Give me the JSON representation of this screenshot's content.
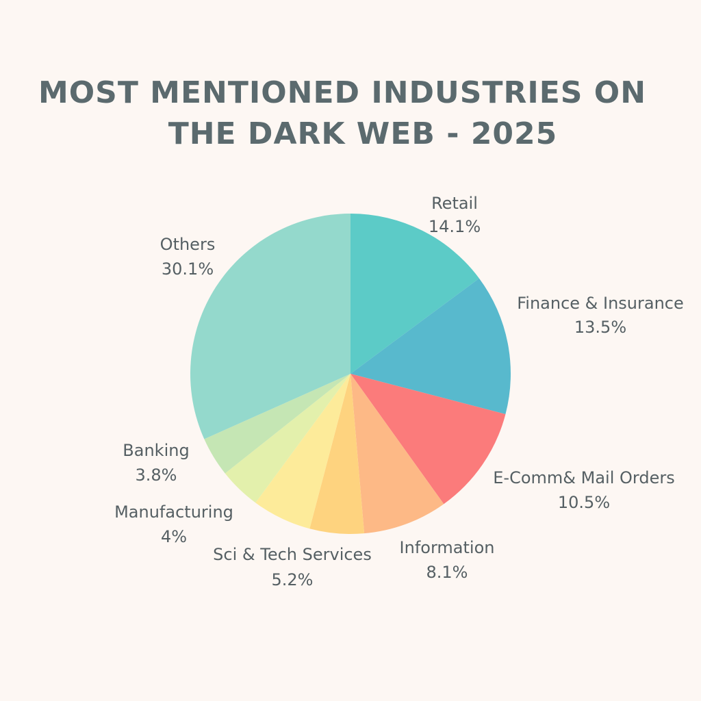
{
  "title": {
    "line1": "MOST MENTIONED INDUSTRIES ON",
    "line2": "THE DARK WEB - 2025"
  },
  "chart_data": {
    "type": "pie",
    "title": "MOST MENTIONED INDUSTRIES ON THE DARK WEB - 2025",
    "start_angle_deg": 0,
    "direction": "clockwise",
    "slices": [
      {
        "label": "Retail",
        "value": 14.1,
        "display": "14.1%",
        "color": "#5ccbc7"
      },
      {
        "label": "Finance & Insurance",
        "value": 13.5,
        "display": "13.5%",
        "color": "#58b9cd"
      },
      {
        "label": "E-Comm& Mail Orders",
        "value": 10.5,
        "display": "10.5%",
        "color": "#fb7b7b"
      },
      {
        "label": "Information",
        "value": 8.1,
        "display": "8.1%",
        "color": "#fdb986"
      },
      {
        "label": "Sci & Tech Services",
        "value": 5.2,
        "display": "5.2%",
        "color": "#fed37f"
      },
      {
        "label": "",
        "value": 5.7,
        "display": "",
        "color": "#fdeb9a"
      },
      {
        "label": "Manufacturing",
        "value": 4,
        "display": "4%",
        "color": "#e3f0ac"
      },
      {
        "label": "Banking",
        "value": 3.8,
        "display": "3.8%",
        "color": "#c5e6b4"
      },
      {
        "label": "Others",
        "value": 30.1,
        "display": "30.1%",
        "color": "#94d9cc"
      }
    ]
  }
}
